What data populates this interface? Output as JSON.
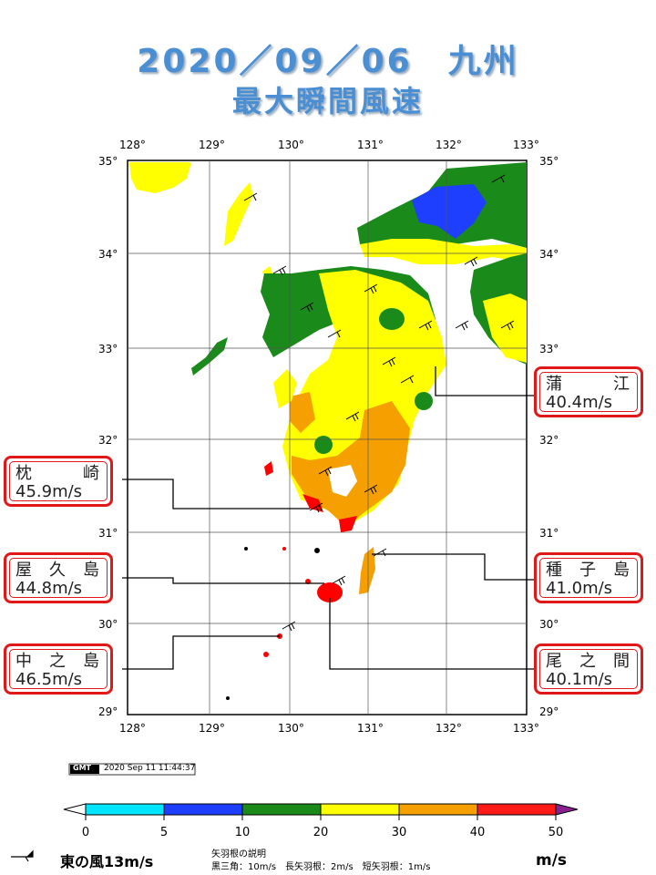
{
  "title": {
    "line1": "2020／09／06　九州",
    "line2": "最大瞬間風速"
  },
  "map": {
    "lon_ticks": [
      "128°",
      "129°",
      "130°",
      "131°",
      "132°",
      "133°"
    ],
    "lat_ticks": [
      "35°",
      "34°",
      "33°",
      "32°",
      "31°",
      "30°",
      "29°"
    ],
    "lon_range": [
      128,
      133
    ],
    "lat_range": [
      29,
      35
    ],
    "colors": {
      "land_green": "#1a8a1a",
      "land_yellow": "#ffff00",
      "land_orange": "#f5a000",
      "land_red": "#ff0000",
      "land_blue": "#1f3fff"
    }
  },
  "stations": {
    "kamae": {
      "name": "蒲江",
      "value": "40.4m/s"
    },
    "makurazaki": {
      "name": "枕崎",
      "value": "45.9m/s"
    },
    "yakushima": {
      "name": "屋久島",
      "value": "44.8m/s"
    },
    "tanegashima": {
      "name": "種子島",
      "value": "41.0m/s"
    },
    "nakanoshima": {
      "name": "中之島",
      "value": "46.5m/s"
    },
    "onoaida": {
      "name": "尾之間",
      "value": "40.1m/s"
    }
  },
  "gmt_stamp": {
    "logo": "GMT",
    "timestamp": "2020 Sep 11 11:44:37"
  },
  "colorbar": {
    "ticks": [
      "0",
      "5",
      "10",
      "20",
      "30",
      "40",
      "50"
    ],
    "colors": [
      "#00e5ff",
      "#1f3fff",
      "#1a8a1a",
      "#ffff00",
      "#f5a000",
      "#ff1a1a"
    ],
    "unit": "m/s"
  },
  "legend": {
    "arrow_label": "東の風13m/s",
    "explain_title": "矢羽根の説明",
    "explain_line": "黒三角：10m/s　長矢羽根：2m/s　短矢羽根：1m/s"
  }
}
